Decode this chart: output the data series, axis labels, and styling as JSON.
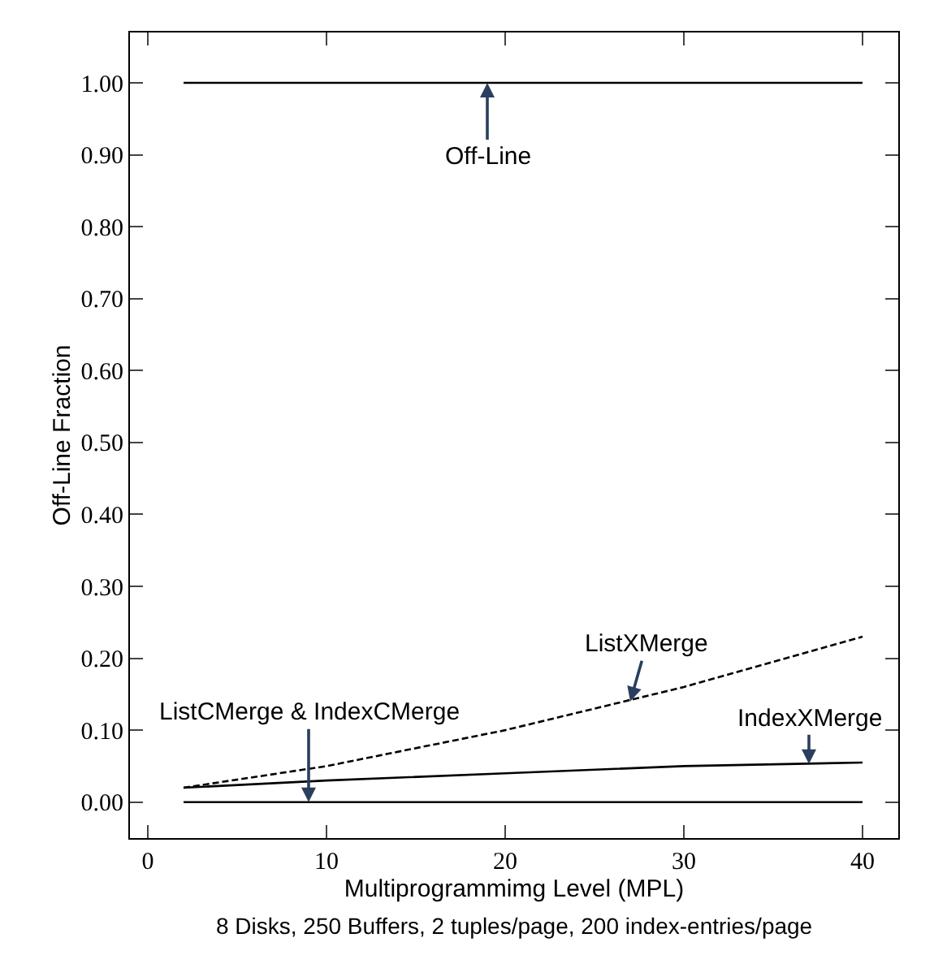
{
  "chart_data": {
    "type": "line",
    "xlabel": "Multiprogrammimg Level (MPL)",
    "ylabel": "Off-Line Fraction",
    "subtitle": "8 Disks, 250 Buffers, 2 tuples/page, 200 index-entries/page",
    "xlim": [
      -1,
      42
    ],
    "ylim": [
      -0.05,
      1.07
    ],
    "xticks": [
      0,
      10,
      20,
      30,
      40
    ],
    "yticks": [
      {
        "value": 0,
        "label": "0.00"
      },
      {
        "value": 0.1,
        "label": "0.10"
      },
      {
        "value": 0.2,
        "label": "0.20"
      },
      {
        "value": 0.3,
        "label": "0.30"
      },
      {
        "value": 0.4,
        "label": "0.40"
      },
      {
        "value": 0.5,
        "label": "0.50"
      },
      {
        "value": 0.6,
        "label": "0.60"
      },
      {
        "value": 0.7,
        "label": "0.70"
      },
      {
        "value": 0.8,
        "label": "0.80"
      },
      {
        "value": 0.9,
        "label": "0.90"
      },
      {
        "value": 1,
        "label": "1.00"
      }
    ],
    "x": [
      2,
      10,
      20,
      30,
      40
    ],
    "series": [
      {
        "color": "#000000",
        "values": [
          1,
          1,
          1,
          1,
          1
        ],
        "line_style": "solid"
      },
      {
        "color": "#000000",
        "values": [
          0.02,
          0.05,
          0.1,
          0.16,
          0.23
        ],
        "line_style": "dashed"
      },
      {
        "color": "#000000",
        "values": [
          0.02,
          0.03,
          0.04,
          0.05,
          0.055
        ],
        "line_style": "solid"
      },
      {
        "color": "#000000",
        "values": [
          0,
          0,
          0,
          0,
          0
        ],
        "line_style": "solid"
      }
    ],
    "annotations": [
      {
        "text": "Off-Line",
        "x": 19,
        "y": 1
      },
      {
        "text": "ListXMerge",
        "x": 27,
        "y": 0.14
      },
      {
        "text": "ListCMerge & IndexCMerge",
        "x": 9,
        "y": 0
      },
      {
        "text": "IndexXMerge",
        "x": 37,
        "y": 0.053
      }
    ]
  }
}
